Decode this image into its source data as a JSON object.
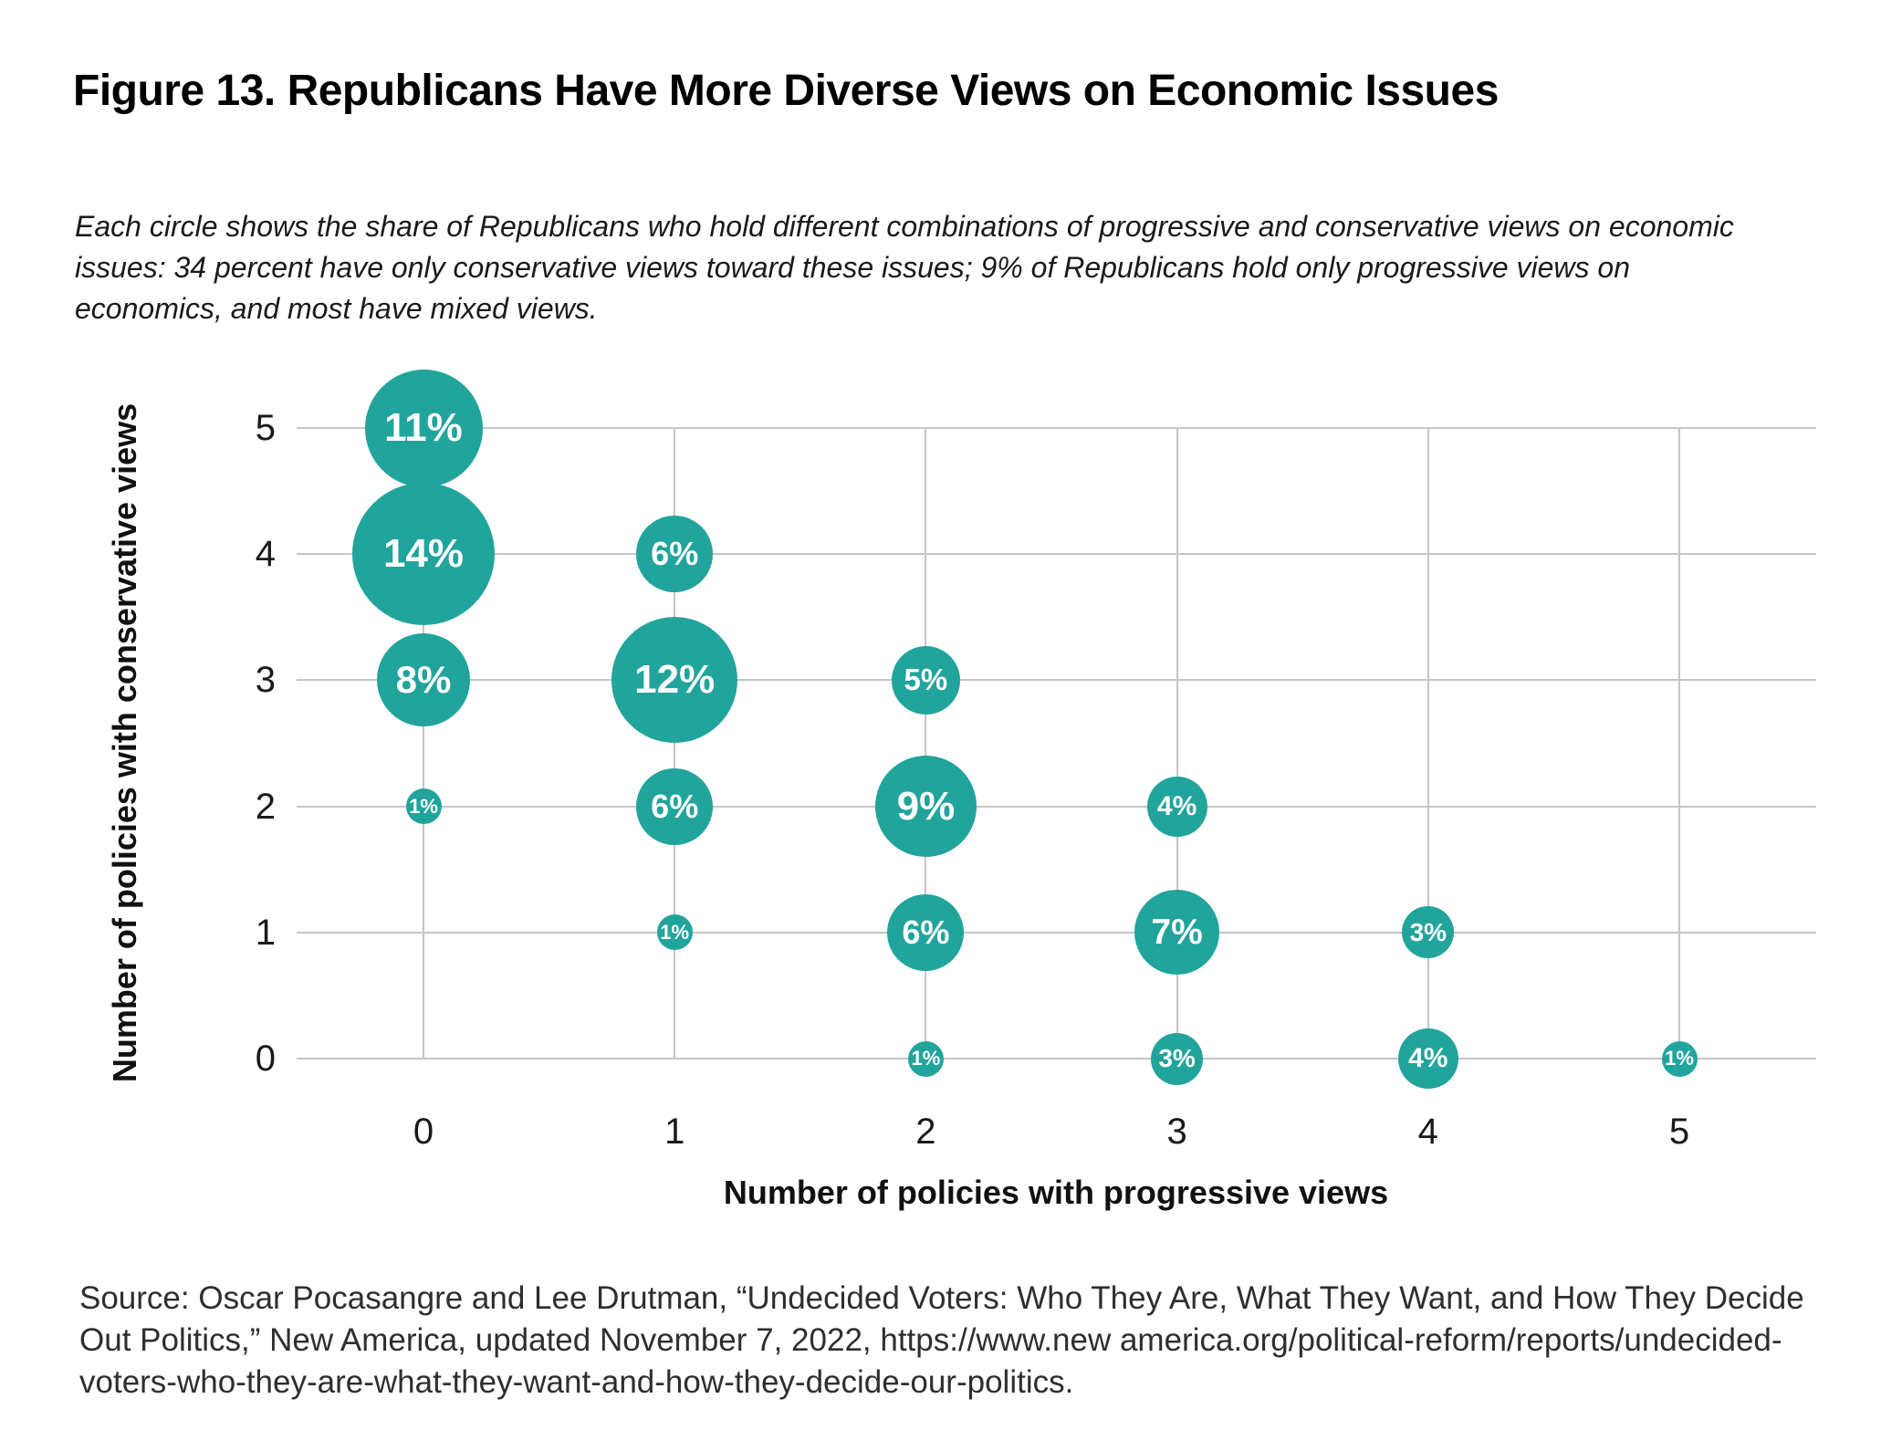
{
  "page": {
    "title": "Figure 13. Republicans Have More Diverse Views on Economic Issues",
    "subtitle_lines": [
      "Each circle shows the share of Republicans who hold different combinations of progressive and conservative views on economic",
      "issues: 34 percent have only conservative views toward these issues; 9% of Republicans hold only progressive views on",
      "economics, and most have mixed views."
    ],
    "source_lines": [
      "Source: Oscar Pocasangre and Lee Drutman, “Undecided Voters: Who They Are, What They Want, and How They Decide",
      "Out Politics,” New America, updated November 7, 2022, https://www.new america.org/political-reform/reports/undecided-",
      "voters-who-they-are-what-they-want-and-how-they-decide-our-politics."
    ]
  },
  "chart_data": {
    "type": "scatter",
    "variant": "bubble",
    "xlabel": "Number of policies with progressive views",
    "ylabel": "Number of policies with conservative views",
    "x_ticks": [
      "0",
      "1",
      "2",
      "3",
      "4",
      "5"
    ],
    "y_ticks": [
      "0",
      "1",
      "2",
      "3",
      "4",
      "5"
    ],
    "xlim": [
      0,
      5
    ],
    "ylim": [
      0,
      5
    ],
    "grid": true,
    "colors": {
      "bubble": "#21a49c",
      "bubble_label": "#ffffff",
      "gridline": "#c6c6c6",
      "tick_text": "#1a1a1a"
    },
    "points": [
      {
        "x": 0,
        "y": 5,
        "value": 11,
        "label": "11%"
      },
      {
        "x": 0,
        "y": 4,
        "value": 14,
        "label": "14%"
      },
      {
        "x": 0,
        "y": 3,
        "value": 8,
        "label": "8%"
      },
      {
        "x": 0,
        "y": 2,
        "value": 1,
        "label": "1%"
      },
      {
        "x": 1,
        "y": 4,
        "value": 6,
        "label": "6%"
      },
      {
        "x": 1,
        "y": 3,
        "value": 12,
        "label": "12%"
      },
      {
        "x": 1,
        "y": 2,
        "value": 6,
        "label": "6%"
      },
      {
        "x": 1,
        "y": 1,
        "value": 1,
        "label": "1%"
      },
      {
        "x": 2,
        "y": 3,
        "value": 5,
        "label": "5%"
      },
      {
        "x": 2,
        "y": 2,
        "value": 9,
        "label": "9%"
      },
      {
        "x": 2,
        "y": 1,
        "value": 6,
        "label": "6%"
      },
      {
        "x": 2,
        "y": 0,
        "value": 1,
        "label": "1%"
      },
      {
        "x": 3,
        "y": 2,
        "value": 4,
        "label": "4%"
      },
      {
        "x": 3,
        "y": 1,
        "value": 7,
        "label": "7%"
      },
      {
        "x": 3,
        "y": 0,
        "value": 3,
        "label": "3%"
      },
      {
        "x": 4,
        "y": 1,
        "value": 3,
        "label": "3%"
      },
      {
        "x": 4,
        "y": 0,
        "value": 4,
        "label": "4%"
      },
      {
        "x": 5,
        "y": 0,
        "value": 1,
        "label": "1%"
      }
    ]
  }
}
